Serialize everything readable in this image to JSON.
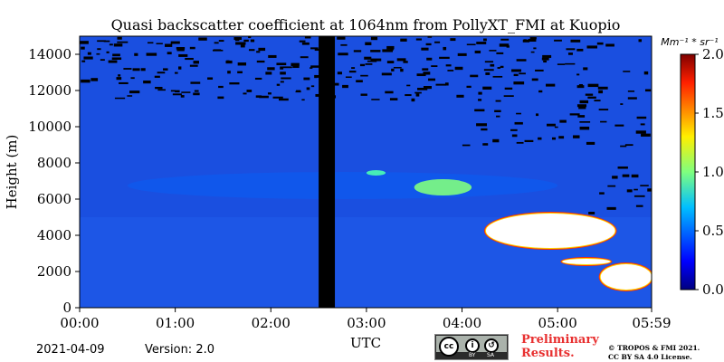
{
  "chart_data": {
    "type": "heatmap",
    "title": "Quasi backscatter coefficient at 1064nm from PollyXT_FMI at Kuopio",
    "xlabel": "UTC",
    "ylabel": "Height (m)",
    "x_ticks": [
      "00:00",
      "01:00",
      "02:00",
      "03:00",
      "04:00",
      "05:00",
      "05:59"
    ],
    "x_tick_hours": [
      0,
      1,
      2,
      3,
      4,
      5,
      5.983
    ],
    "xlim_hours": [
      0,
      5.983
    ],
    "y_ticks": [
      0,
      2000,
      4000,
      6000,
      8000,
      10000,
      12000,
      14000
    ],
    "ylim": [
      0,
      15000
    ],
    "colorbar": {
      "label": "Mm⁻¹ * sr⁻¹",
      "range": [
        0,
        2
      ],
      "ticks": [
        "0.0",
        "0.5",
        "1.0",
        "1.5",
        "2.0"
      ],
      "tick_values": [
        0,
        0.5,
        1.0,
        1.5,
        2.0
      ],
      "colormap": "jet"
    },
    "no_data_interval_hours": [
      2.5,
      2.67
    ],
    "colors": {
      "background_signal": "#1a4fe0",
      "no_data": "#000000",
      "saturation": "#ffffff"
    },
    "features": [
      {
        "kind": "aerosol_layer",
        "height_m": [
          6000,
          7500
        ],
        "time_h": [
          0.5,
          5.0
        ],
        "value_approx": 0.2
      },
      {
        "kind": "cloud",
        "time_h": [
          3.0,
          3.2
        ],
        "height_m": [
          7300,
          7600
        ],
        "value_approx": 0.9
      },
      {
        "kind": "cloud",
        "time_h": [
          3.5,
          4.1
        ],
        "height_m": [
          6200,
          7100
        ],
        "value_approx": 1.0
      },
      {
        "kind": "cloud",
        "time_h": [
          4.25,
          5.6
        ],
        "height_m": [
          3300,
          5200
        ],
        "value_approx": 2.0
      },
      {
        "kind": "cloud",
        "time_h": [
          5.05,
          5.55
        ],
        "height_m": [
          2400,
          2700
        ],
        "value_approx": 2.0
      },
      {
        "kind": "cloud",
        "time_h": [
          5.45,
          6.0
        ],
        "height_m": [
          1000,
          2400
        ],
        "value_approx": 2.0
      }
    ]
  },
  "footer": {
    "date": "2021-04-09",
    "version": "Version: 2.0",
    "license_badge": {
      "top": "cc",
      "bottom_left": "BY",
      "bottom_right": "SA"
    },
    "preliminary": [
      "Preliminary",
      "Results."
    ],
    "copyright": [
      "© TROPOS & FMI 2021.",
      "CC BY SA 4.0 License."
    ]
  }
}
